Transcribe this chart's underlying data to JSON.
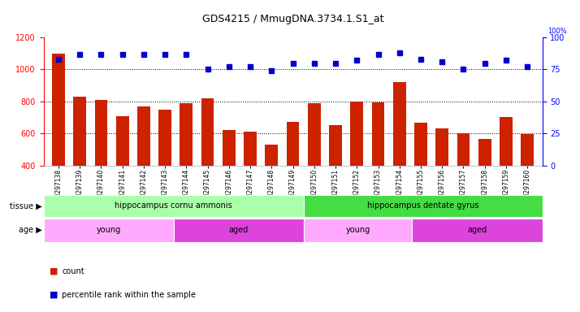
{
  "title": "GDS4215 / MmugDNA.3734.1.S1_at",
  "samples": [
    "GSM297138",
    "GSM297139",
    "GSM297140",
    "GSM297141",
    "GSM297142",
    "GSM297143",
    "GSM297144",
    "GSM297145",
    "GSM297146",
    "GSM297147",
    "GSM297148",
    "GSM297149",
    "GSM297150",
    "GSM297151",
    "GSM297152",
    "GSM297153",
    "GSM297154",
    "GSM297155",
    "GSM297156",
    "GSM297157",
    "GSM297158",
    "GSM297159",
    "GSM297160"
  ],
  "counts": [
    1100,
    830,
    810,
    710,
    770,
    750,
    790,
    820,
    620,
    610,
    530,
    670,
    790,
    650,
    800,
    795,
    920,
    665,
    630,
    600,
    565,
    700,
    595
  ],
  "percentiles": [
    83,
    87,
    87,
    87,
    87,
    87,
    87,
    75,
    77,
    77,
    74,
    80,
    80,
    80,
    82,
    87,
    88,
    83,
    81,
    75,
    80,
    82,
    77
  ],
  "ylim_left": [
    400,
    1200
  ],
  "ylim_right": [
    0,
    100
  ],
  "yticks_left": [
    400,
    600,
    800,
    1000,
    1200
  ],
  "yticks_right": [
    0,
    25,
    50,
    75,
    100
  ],
  "bar_color": "#cc2200",
  "dot_color": "#0000cc",
  "bg_color": "#ffffff",
  "tissue_groups": [
    {
      "label": "hippocampus cornu ammonis",
      "start": 0,
      "end": 12,
      "color": "#aaffaa"
    },
    {
      "label": "hippocampus dentate gyrus",
      "start": 12,
      "end": 23,
      "color": "#44dd44"
    }
  ],
  "age_groups": [
    {
      "label": "young",
      "start": 0,
      "end": 6,
      "color": "#ffaaff"
    },
    {
      "label": "aged",
      "start": 6,
      "end": 12,
      "color": "#dd44dd"
    },
    {
      "label": "young",
      "start": 12,
      "end": 17,
      "color": "#ffaaff"
    },
    {
      "label": "aged",
      "start": 17,
      "end": 23,
      "color": "#dd44dd"
    }
  ],
  "legend_count_label": "count",
  "legend_pct_label": "percentile rank within the sample"
}
